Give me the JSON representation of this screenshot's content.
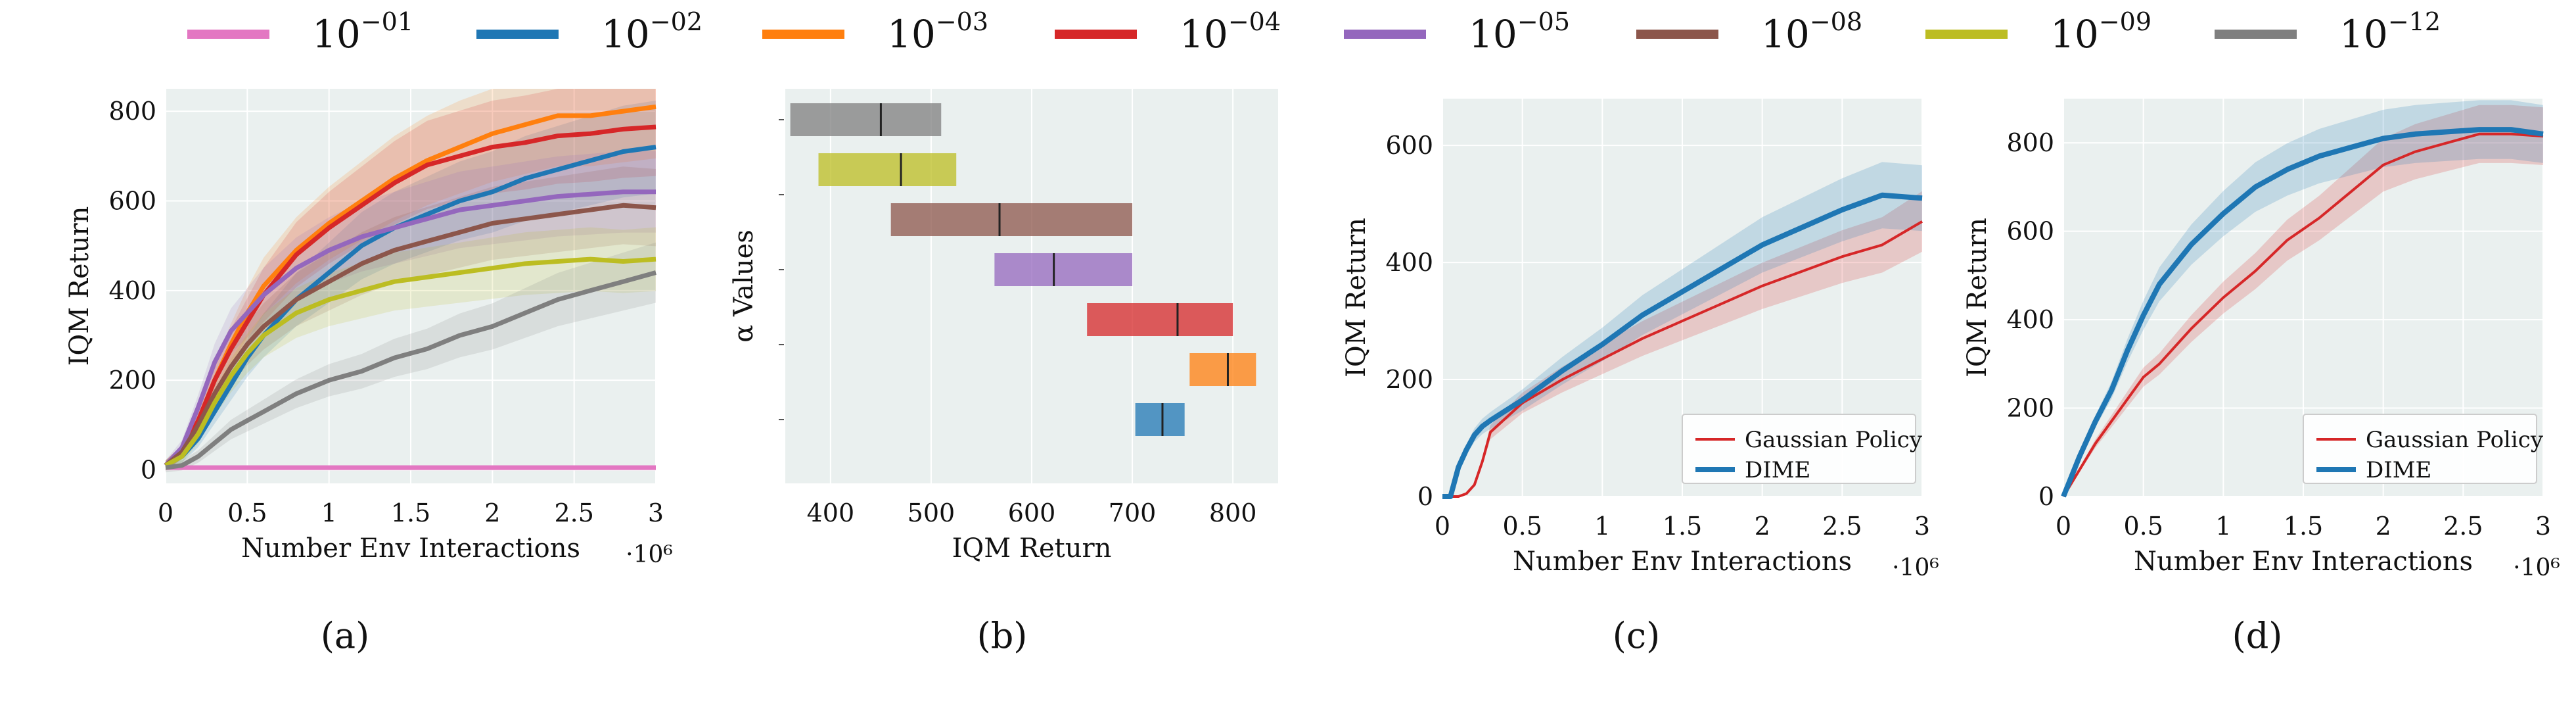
{
  "legend": {
    "entries": [
      {
        "base": "10",
        "exp": "−01",
        "color": "#e377c2"
      },
      {
        "base": "10",
        "exp": "−02",
        "color": "#1f77b4"
      },
      {
        "base": "10",
        "exp": "−03",
        "color": "#ff7f0e"
      },
      {
        "base": "10",
        "exp": "−04",
        "color": "#d62728"
      },
      {
        "base": "10",
        "exp": "−05",
        "color": "#9467bd"
      },
      {
        "base": "10",
        "exp": "−08",
        "color": "#8c564b"
      },
      {
        "base": "10",
        "exp": "−09",
        "color": "#bcbd22"
      },
      {
        "base": "10",
        "exp": "−12",
        "color": "#7f7f7f"
      }
    ]
  },
  "chart_data": [
    {
      "panel": "(a)",
      "type": "line",
      "xlabel": "Number Env Interactions",
      "ylabel": "IQM Return",
      "x_scale_label": "·10⁶",
      "xlim": [
        0,
        3
      ],
      "ylim": [
        -30,
        850
      ],
      "xticks": [
        "0",
        "0.5",
        "1",
        "1.5",
        "2",
        "2.5",
        "3"
      ],
      "yticks": [
        "0",
        "200",
        "400",
        "600",
        "800"
      ],
      "grid": true,
      "x": [
        0,
        0.1,
        0.2,
        0.3,
        0.4,
        0.5,
        0.6,
        0.8,
        1.0,
        1.2,
        1.4,
        1.6,
        1.8,
        2.0,
        2.2,
        2.4,
        2.6,
        2.8,
        3.0
      ],
      "series": [
        {
          "name": "10^-01",
          "color": "#e377c2",
          "values": [
            5,
            5,
            5,
            5,
            5,
            5,
            5,
            5,
            5,
            5,
            5,
            5,
            5,
            5,
            5,
            5,
            5,
            5,
            5
          ]
        },
        {
          "name": "10^-02",
          "color": "#1f77b4",
          "values": [
            10,
            30,
            70,
            130,
            190,
            250,
            300,
            380,
            440,
            500,
            540,
            570,
            600,
            620,
            650,
            670,
            690,
            710,
            720
          ]
        },
        {
          "name": "10^-03",
          "color": "#ff7f0e",
          "values": [
            10,
            40,
            110,
            200,
            280,
            350,
            410,
            490,
            550,
            600,
            650,
            690,
            720,
            750,
            770,
            790,
            790,
            800,
            810
          ]
        },
        {
          "name": "10^-04",
          "color": "#d62728",
          "values": [
            10,
            40,
            110,
            200,
            270,
            330,
            390,
            480,
            540,
            590,
            640,
            680,
            700,
            720,
            730,
            745,
            750,
            760,
            765
          ]
        },
        {
          "name": "10^-05",
          "color": "#9467bd",
          "values": [
            10,
            50,
            140,
            240,
            310,
            350,
            390,
            450,
            490,
            520,
            540,
            560,
            580,
            590,
            600,
            610,
            615,
            620,
            620
          ]
        },
        {
          "name": "10^-08",
          "color": "#8c564b",
          "values": [
            10,
            40,
            100,
            170,
            230,
            280,
            320,
            380,
            420,
            460,
            490,
            510,
            530,
            550,
            560,
            570,
            580,
            590,
            585
          ]
        },
        {
          "name": "10^-09",
          "color": "#bcbd22",
          "values": [
            10,
            30,
            80,
            150,
            210,
            260,
            300,
            350,
            380,
            400,
            420,
            430,
            440,
            450,
            460,
            465,
            470,
            465,
            470
          ]
        },
        {
          "name": "10^-12",
          "color": "#7f7f7f",
          "values": [
            5,
            10,
            30,
            60,
            90,
            110,
            130,
            170,
            200,
            220,
            250,
            270,
            300,
            320,
            350,
            380,
            400,
            420,
            440
          ]
        }
      ]
    },
    {
      "panel": "(b)",
      "type": "bar",
      "orientation": "horizontal",
      "xlabel": "IQM Return",
      "ylabel": "α Values",
      "xlim": [
        355,
        845
      ],
      "xticks": [
        "400",
        "500",
        "600",
        "700",
        "800"
      ],
      "grid": true,
      "bars": [
        {
          "alpha": "10^-12",
          "color": "#7f7f7f",
          "low": 360,
          "high": 510,
          "median": 450
        },
        {
          "alpha": "10^-09",
          "color": "#bcbd22",
          "low": 388,
          "high": 525,
          "median": 470
        },
        {
          "alpha": "10^-08",
          "color": "#8c564b",
          "low": 460,
          "high": 700,
          "median": 568
        },
        {
          "alpha": "10^-05",
          "color": "#9467bd",
          "low": 563,
          "high": 700,
          "median": 622
        },
        {
          "alpha": "10^-04",
          "color": "#d62728",
          "low": 655,
          "high": 800,
          "median": 745
        },
        {
          "alpha": "10^-03",
          "color": "#ff7f0e",
          "low": 757,
          "high": 823,
          "median": 795
        },
        {
          "alpha": "10^-02",
          "color": "#1f77b4",
          "low": 703,
          "high": 752,
          "median": 730
        }
      ]
    },
    {
      "panel": "(c)",
      "type": "line",
      "xlabel": "Number Env Interactions",
      "ylabel": "IQM Return",
      "x_scale_label": "·10⁶",
      "xlim": [
        0,
        3
      ],
      "ylim": [
        0,
        680
      ],
      "xticks": [
        "0",
        "0.5",
        "1",
        "1.5",
        "2",
        "2.5",
        "3"
      ],
      "yticks": [
        "0",
        "200",
        "400",
        "600"
      ],
      "grid": true,
      "legend_position": "bottom-right",
      "x": [
        0,
        0.05,
        0.1,
        0.15,
        0.2,
        0.25,
        0.3,
        0.5,
        0.75,
        1.0,
        1.25,
        1.5,
        1.75,
        2.0,
        2.25,
        2.5,
        2.75,
        3.0
      ],
      "series": [
        {
          "name": "Gaussian Policy",
          "color": "#d62728",
          "values": [
            0,
            0,
            0,
            5,
            20,
            60,
            110,
            160,
            200,
            235,
            270,
            300,
            330,
            360,
            385,
            410,
            430,
            470
          ]
        },
        {
          "name": "DIME",
          "color": "#1f77b4",
          "values": [
            0,
            0,
            50,
            80,
            105,
            120,
            130,
            165,
            215,
            260,
            310,
            350,
            390,
            430,
            460,
            490,
            515,
            510
          ]
        }
      ]
    },
    {
      "panel": "(d)",
      "type": "line",
      "xlabel": "Number Env Interactions",
      "ylabel": "IQM Return",
      "x_scale_label": "·10⁶",
      "xlim": [
        0,
        3
      ],
      "ylim": [
        0,
        900
      ],
      "xticks": [
        "0",
        "0.5",
        "1",
        "1.5",
        "2",
        "2.5",
        "3"
      ],
      "yticks": [
        "0",
        "200",
        "400",
        "600",
        "800"
      ],
      "grid": true,
      "legend_position": "bottom-right",
      "x": [
        0,
        0.1,
        0.2,
        0.3,
        0.4,
        0.5,
        0.6,
        0.8,
        1.0,
        1.2,
        1.4,
        1.6,
        1.8,
        2.0,
        2.2,
        2.4,
        2.6,
        2.8,
        3.0
      ],
      "series": [
        {
          "name": "Gaussian Policy",
          "color": "#d62728",
          "values": [
            0,
            60,
            120,
            170,
            220,
            270,
            300,
            380,
            450,
            510,
            580,
            630,
            690,
            750,
            780,
            800,
            820,
            820,
            815
          ]
        },
        {
          "name": "DIME",
          "color": "#1f77b4",
          "values": [
            0,
            90,
            170,
            240,
            330,
            410,
            480,
            570,
            640,
            700,
            740,
            770,
            790,
            810,
            820,
            825,
            830,
            830,
            820
          ]
        }
      ]
    }
  ],
  "captions": [
    "(a)",
    "(b)",
    "(c)",
    "(d)"
  ]
}
